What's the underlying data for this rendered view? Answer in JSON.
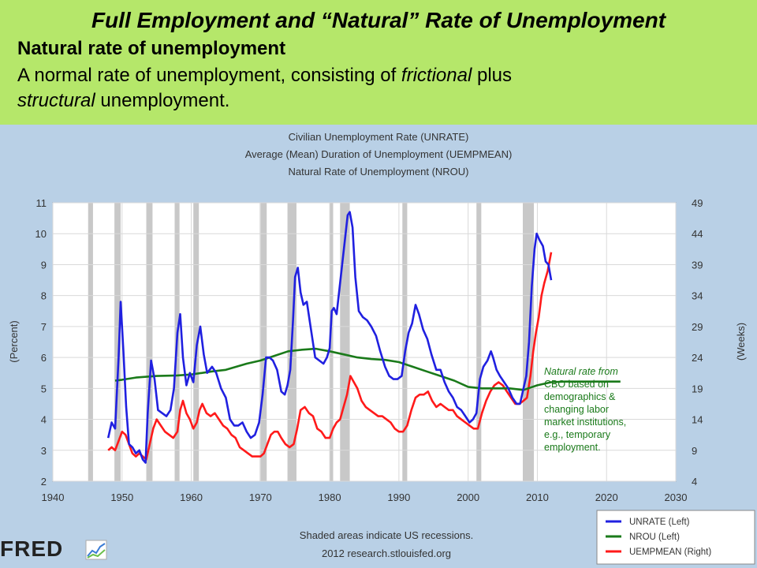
{
  "slide": {
    "title": "Full Employment and  “Natural” Rate of Unemployment",
    "definition_heading": "Natural rate of unemployment",
    "definition_line1_pre": "A normal rate of unemployment, consisting of ",
    "definition_line1_italic": "frictional",
    "definition_line1_post": " plus",
    "definition_line2_italic": "structural",
    "definition_line2_post": " unemployment."
  },
  "chart_data": {
    "type": "line",
    "title_lines": [
      "Civilian Unemployment Rate (UNRATE)",
      "Average (Mean) Duration of Unemployment (UEMPMEAN)",
      "Natural Rate of Unemployment (NROU)"
    ],
    "ylabel_left": "(Percent)",
    "ylabel_right": "(Weeks)",
    "xlim": [
      1940,
      2030
    ],
    "ylim_left": [
      2,
      11
    ],
    "ylim_right": [
      4,
      49
    ],
    "x_ticks": [
      1940,
      1950,
      1960,
      1970,
      1980,
      1990,
      2000,
      2010,
      2020,
      2030
    ],
    "y_left_ticks": [
      2,
      3,
      4,
      5,
      6,
      7,
      8,
      9,
      10,
      11
    ],
    "y_right_ticks": [
      4,
      9,
      14,
      19,
      24,
      29,
      34,
      39,
      44,
      49
    ],
    "grid": true,
    "recessions": [
      [
        1945.1,
        1945.8
      ],
      [
        1948.9,
        1949.8
      ],
      [
        1953.5,
        1954.4
      ],
      [
        1957.6,
        1958.3
      ],
      [
        1960.3,
        1961.1
      ],
      [
        1969.9,
        1970.9
      ],
      [
        1973.9,
        1975.2
      ],
      [
        1980.0,
        1980.5
      ],
      [
        1981.5,
        1982.9
      ],
      [
        1990.5,
        1991.2
      ],
      [
        2001.2,
        2001.9
      ],
      [
        2007.9,
        2009.5
      ]
    ],
    "recession_note": "Shaded areas indicate US recessions.",
    "source": "2012 research.stlouisfed.org",
    "logo": "FRED",
    "annotation": {
      "lines": [
        "Natural rate from",
        "CBO based on",
        "demographics &",
        "changing labor",
        "market institutions,",
        "e.g., temporary",
        "employment."
      ],
      "color": "#1a7a1a"
    },
    "series": [
      {
        "name": "UNRATE (Left)",
        "axis": "left",
        "color": "#2020e0",
        "x": [
          1948.0,
          1948.5,
          1949.0,
          1949.5,
          1949.8,
          1950.2,
          1950.6,
          1951.0,
          1951.5,
          1952.0,
          1952.5,
          1953.0,
          1953.4,
          1953.7,
          1954.2,
          1954.7,
          1955.2,
          1955.8,
          1956.4,
          1957.0,
          1957.5,
          1958.0,
          1958.4,
          1958.8,
          1959.3,
          1959.8,
          1960.3,
          1960.8,
          1961.3,
          1961.8,
          1962.3,
          1963.0,
          1963.6,
          1964.3,
          1965.0,
          1965.6,
          1966.2,
          1966.8,
          1967.4,
          1968.0,
          1968.6,
          1969.2,
          1969.8,
          1970.3,
          1970.8,
          1971.3,
          1971.8,
          1972.4,
          1973.0,
          1973.5,
          1973.9,
          1974.3,
          1974.7,
          1975.0,
          1975.4,
          1975.8,
          1976.2,
          1976.7,
          1977.3,
          1977.9,
          1978.5,
          1979.1,
          1979.6,
          1980.0,
          1980.3,
          1980.6,
          1981.0,
          1981.4,
          1981.8,
          1982.2,
          1982.6,
          1982.9,
          1983.3,
          1983.7,
          1984.2,
          1984.8,
          1985.4,
          1986.0,
          1986.7,
          1987.3,
          1988.0,
          1988.6,
          1989.2,
          1989.8,
          1990.4,
          1990.9,
          1991.4,
          1991.9,
          1992.4,
          1992.9,
          1993.5,
          1994.1,
          1994.7,
          1995.4,
          1996.0,
          1996.6,
          1997.2,
          1997.8,
          1998.4,
          1999.0,
          1999.6,
          2000.2,
          2000.7,
          2001.2,
          2001.7,
          2002.2,
          2002.8,
          2003.3,
          2003.6,
          2004.1,
          2004.6,
          2005.2,
          2005.8,
          2006.4,
          2007.0,
          2007.5,
          2008.0,
          2008.4,
          2008.8,
          2009.2,
          2009.6,
          2009.9,
          2010.3,
          2010.8,
          2011.2,
          2011.6,
          2012.0
        ],
        "y": [
          3.4,
          3.9,
          3.7,
          6.0,
          7.8,
          6.2,
          4.4,
          3.2,
          3.1,
          2.9,
          3.0,
          2.7,
          2.6,
          4.2,
          5.9,
          5.3,
          4.3,
          4.2,
          4.1,
          4.3,
          5.0,
          6.8,
          7.4,
          6.0,
          5.1,
          5.5,
          5.2,
          6.4,
          7.0,
          6.1,
          5.5,
          5.7,
          5.5,
          5.0,
          4.7,
          4.0,
          3.8,
          3.8,
          3.9,
          3.6,
          3.4,
          3.5,
          3.9,
          4.8,
          6.0,
          6.0,
          5.9,
          5.6,
          4.9,
          4.8,
          5.1,
          5.6,
          7.2,
          8.6,
          8.9,
          8.1,
          7.7,
          7.8,
          6.9,
          6.0,
          5.9,
          5.8,
          6.0,
          6.3,
          7.5,
          7.6,
          7.4,
          8.2,
          9.0,
          9.8,
          10.6,
          10.7,
          10.2,
          8.6,
          7.5,
          7.3,
          7.2,
          7.0,
          6.7,
          6.2,
          5.7,
          5.4,
          5.3,
          5.3,
          5.4,
          6.2,
          6.8,
          7.1,
          7.7,
          7.4,
          6.9,
          6.6,
          6.1,
          5.6,
          5.6,
          5.2,
          4.9,
          4.7,
          4.4,
          4.3,
          4.1,
          3.9,
          4.0,
          4.2,
          5.3,
          5.7,
          5.9,
          6.2,
          6.0,
          5.6,
          5.4,
          5.2,
          5.0,
          4.7,
          4.5,
          4.5,
          5.0,
          5.4,
          6.5,
          8.3,
          9.5,
          10.0,
          9.8,
          9.6,
          9.1,
          9.0,
          8.5
        ]
      },
      {
        "name": "NROU (Left)",
        "axis": "left",
        "color": "#1a7a1a",
        "x": [
          1949,
          1950,
          1952,
          1955,
          1958,
          1960,
          1963,
          1965,
          1968,
          1970,
          1972,
          1974,
          1976,
          1978,
          1980,
          1982,
          1984,
          1986,
          1988,
          1990,
          1992,
          1994,
          1996,
          1998,
          2000,
          2002,
          2004,
          2006,
          2008,
          2010,
          2012,
          2014,
          2016,
          2018,
          2020,
          2022
        ],
        "y": [
          5.25,
          5.28,
          5.35,
          5.4,
          5.42,
          5.45,
          5.55,
          5.6,
          5.8,
          5.9,
          6.05,
          6.2,
          6.25,
          6.28,
          6.2,
          6.1,
          6.0,
          5.95,
          5.92,
          5.85,
          5.7,
          5.55,
          5.4,
          5.25,
          5.05,
          5.0,
          5.0,
          5.0,
          4.95,
          5.1,
          5.2,
          5.22,
          5.22,
          5.22,
          5.22,
          5.22
        ]
      },
      {
        "name": "UEMPMEAN (Right)",
        "axis": "right",
        "color": "#ff1a1a",
        "x": [
          1948.0,
          1948.5,
          1949.0,
          1949.5,
          1950.0,
          1950.5,
          1951.0,
          1951.5,
          1952.0,
          1952.5,
          1953.0,
          1953.5,
          1954.0,
          1954.5,
          1955.0,
          1955.6,
          1956.2,
          1956.8,
          1957.4,
          1958.0,
          1958.4,
          1958.8,
          1959.3,
          1959.8,
          1960.3,
          1960.8,
          1961.2,
          1961.6,
          1962.2,
          1962.8,
          1963.4,
          1964.0,
          1964.6,
          1965.2,
          1965.8,
          1966.4,
          1967.0,
          1967.6,
          1968.2,
          1968.8,
          1969.4,
          1970.0,
          1970.5,
          1971.0,
          1971.5,
          1972.0,
          1972.5,
          1973.0,
          1973.6,
          1974.2,
          1974.8,
          1975.3,
          1975.8,
          1976.4,
          1977.0,
          1977.6,
          1978.2,
          1978.8,
          1979.4,
          1980.0,
          1980.5,
          1981.0,
          1981.5,
          1982.0,
          1982.5,
          1983.0,
          1983.5,
          1984.0,
          1984.6,
          1985.2,
          1985.8,
          1986.4,
          1987.0,
          1987.6,
          1988.2,
          1988.8,
          1989.4,
          1990.0,
          1990.6,
          1991.2,
          1991.8,
          1992.4,
          1993.0,
          1993.6,
          1994.2,
          1994.8,
          1995.4,
          1996.0,
          1996.6,
          1997.2,
          1997.8,
          1998.4,
          1999.0,
          1999.6,
          2000.2,
          2000.8,
          2001.4,
          2002.0,
          2002.6,
          2003.2,
          2003.8,
          2004.4,
          2005.0,
          2005.6,
          2006.2,
          2006.8,
          2007.4,
          2008.0,
          2008.5,
          2009.0,
          2009.4,
          2009.8,
          2010.2,
          2010.6,
          2011.0,
          2011.5,
          2012.0
        ],
        "y": [
          9.0,
          9.5,
          9.0,
          10.5,
          12.0,
          11.5,
          10.0,
          8.5,
          8.0,
          8.5,
          8.0,
          7.5,
          10.0,
          12.5,
          14.0,
          13.0,
          12.0,
          11.5,
          11.0,
          12.0,
          15.5,
          17.0,
          15.0,
          14.0,
          12.5,
          13.5,
          15.5,
          16.5,
          15.0,
          14.5,
          15.0,
          14.0,
          13.0,
          12.5,
          11.5,
          11.0,
          9.5,
          9.0,
          8.5,
          8.0,
          8.0,
          8.0,
          8.5,
          10.0,
          11.5,
          12.0,
          12.0,
          11.0,
          10.0,
          9.5,
          10.0,
          12.5,
          15.5,
          16.0,
          15.0,
          14.5,
          12.5,
          12.0,
          11.0,
          11.0,
          12.5,
          13.5,
          14.0,
          16.0,
          18.0,
          21.0,
          20.0,
          19.0,
          17.0,
          16.0,
          15.5,
          15.0,
          14.5,
          14.5,
          14.0,
          13.5,
          12.5,
          12.0,
          12.0,
          13.0,
          15.5,
          17.5,
          18.0,
          18.0,
          18.5,
          17.0,
          16.0,
          16.5,
          16.0,
          15.5,
          15.5,
          14.5,
          14.0,
          13.5,
          13.0,
          12.5,
          12.5,
          15.0,
          17.0,
          18.5,
          19.5,
          20.0,
          19.5,
          18.5,
          17.5,
          16.5,
          16.5,
          17.0,
          17.5,
          21.0,
          25.0,
          28.0,
          30.5,
          34.0,
          36.0,
          38.0,
          41.0
        ]
      }
    ]
  },
  "legend": {
    "items": [
      {
        "label": "UNRATE (Left)",
        "color": "#2020e0"
      },
      {
        "label": "NROU (Left)",
        "color": "#1a7a1a"
      },
      {
        "label": "UEMPMEAN (Right)",
        "color": "#ff1a1a"
      }
    ]
  }
}
